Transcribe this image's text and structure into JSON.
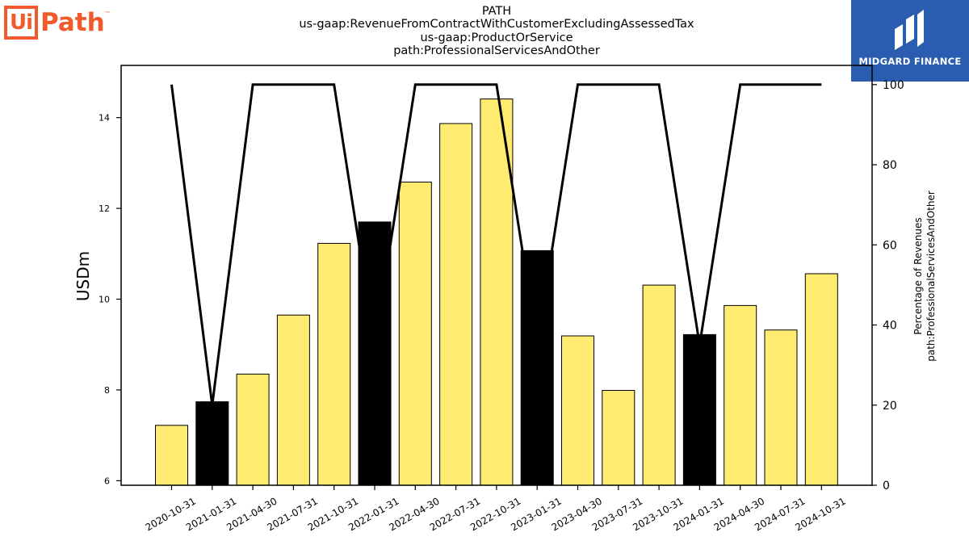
{
  "header": {
    "title_lines": [
      "PATH",
      "us-gaap:RevenueFromContractWithCustomerExcludingAssessedTax",
      "us-gaap:ProductOrService",
      "path:ProfessionalServicesAndOther"
    ]
  },
  "logo_left": {
    "ui": "Ui",
    "path": "Path",
    "tm": "™",
    "color": "#f15a2b"
  },
  "logo_right": {
    "name": "MIDGARD FINANCE",
    "background": "#2a5db0",
    "icon": "midgard-m-icon"
  },
  "chart_data": {
    "type": "bar",
    "categories": [
      "2020-10-31",
      "2021-01-31",
      "2021-04-30",
      "2021-07-31",
      "2021-10-31",
      "2022-01-31",
      "2022-04-30",
      "2022-07-31",
      "2022-10-31",
      "2023-01-31",
      "2023-04-30",
      "2023-07-31",
      "2023-10-31",
      "2024-01-31",
      "2024-04-30",
      "2024-07-31",
      "2024-10-31"
    ],
    "series": [
      {
        "values": [
          7.22,
          7.74,
          8.35,
          9.65,
          11.23,
          11.7,
          12.58,
          13.87,
          14.41,
          11.07,
          9.19,
          7.99,
          10.31,
          9.22,
          9.86,
          9.32,
          10.56
        ],
        "highlight": [
          false,
          true,
          false,
          false,
          false,
          true,
          false,
          false,
          false,
          true,
          false,
          false,
          false,
          true,
          false,
          false,
          false
        ]
      },
      {
        "values": [
          100,
          20,
          100,
          100,
          100,
          35,
          100,
          100,
          100,
          35,
          100,
          100,
          100,
          35,
          100,
          100,
          100
        ]
      }
    ],
    "bar_color": "#ffeb70",
    "highlight_color": "#000000",
    "line_color": "#000000",
    "ylabel": "USDm",
    "ylabel_right": [
      "Percentage of Revenues",
      "path:ProfessionalServicesAndOther"
    ],
    "ylim": [
      5.9,
      15.15
    ],
    "ylim_right": [
      0,
      104.8
    ],
    "yticks": [
      "6",
      "8",
      "10",
      "12",
      "14"
    ],
    "yticks_right": [
      "0",
      "20",
      "40",
      "60",
      "80",
      "100"
    ],
    "grid": false
  }
}
